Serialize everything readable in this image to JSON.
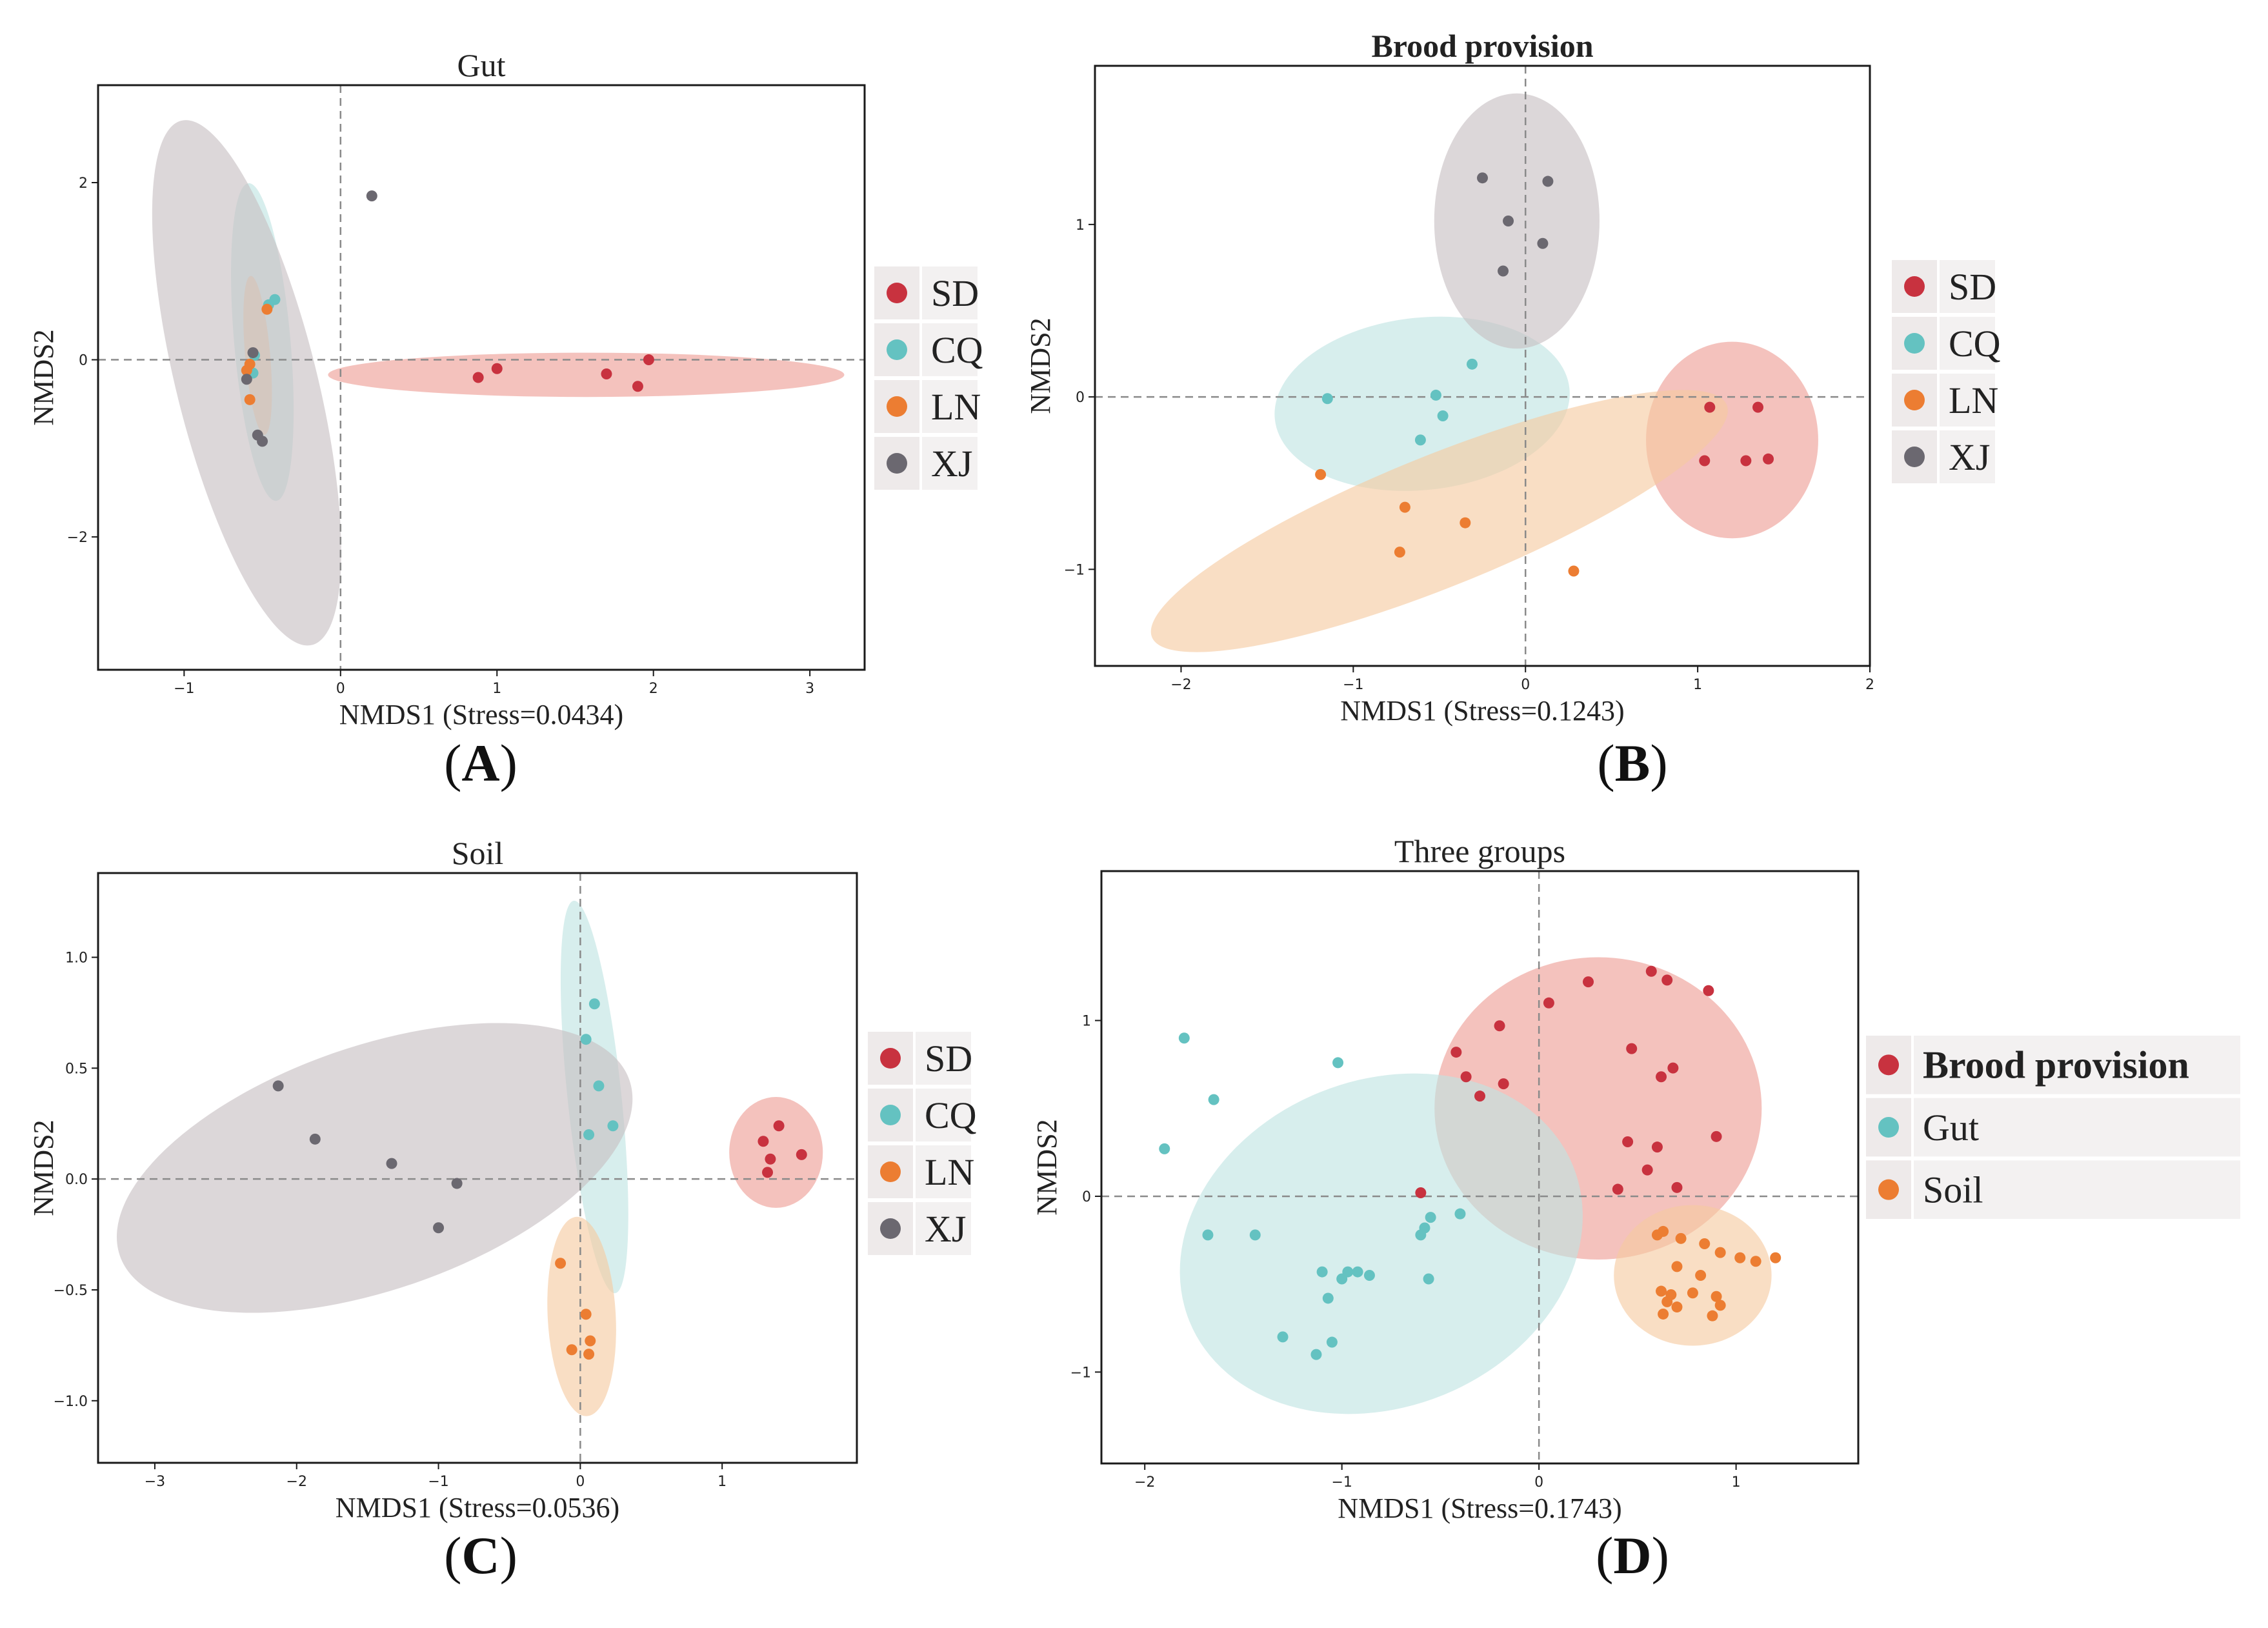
{
  "figure": {
    "panels": [
      {
        "id": "A",
        "label": "(A)"
      },
      {
        "id": "B",
        "label": "(B)"
      },
      {
        "id": "C",
        "label": "(C)"
      },
      {
        "id": "D",
        "label": "(D)"
      }
    ]
  },
  "chart_data": [
    {
      "id": "A",
      "type": "scatter",
      "title": "Gut",
      "title_bold": false,
      "xlabel": "NMDS1 (Stress=0.0434)",
      "ylabel": "NMDS2",
      "xlim": [
        -1.55,
        3.35
      ],
      "ylim": [
        -3.5,
        3.1
      ],
      "xticks": [
        {
          "v": -1,
          "label": "−1"
        },
        {
          "v": 0,
          "label": "0"
        },
        {
          "v": 1,
          "label": "1"
        },
        {
          "v": 2,
          "label": "2"
        },
        {
          "v": 3,
          "label": "3"
        }
      ],
      "yticks": [
        {
          "v": -2,
          "label": "−2"
        },
        {
          "v": 0,
          "label": "0"
        },
        {
          "v": 2,
          "label": "2"
        }
      ],
      "legend": [
        "SD",
        "CQ",
        "LN",
        "XJ"
      ],
      "series": [
        {
          "name": "SD",
          "color": "#c8323f",
          "fill": "#ee9c95",
          "points": [
            [
              0.88,
              -0.2
            ],
            [
              1.0,
              -0.1
            ],
            [
              1.7,
              -0.16
            ],
            [
              1.9,
              -0.3
            ],
            [
              1.97,
              0.0
            ]
          ],
          "ellipse": {
            "cx": 1.57,
            "cy": -0.17,
            "rx": 1.65,
            "ry": 0.25,
            "angle": 0
          }
        },
        {
          "name": "CQ",
          "color": "#64c2c1",
          "fill": "#bfe3e2",
          "points": [
            [
              -0.42,
              0.68
            ],
            [
              -0.46,
              0.62
            ],
            [
              -0.55,
              0.05
            ],
            [
              -0.56,
              -0.15
            ]
          ],
          "ellipse": {
            "cx": -0.5,
            "cy": 0.2,
            "rx": 0.18,
            "ry": 1.8,
            "angle": 5
          }
        },
        {
          "name": "LN",
          "color": "#ec7d32",
          "fill": "#f6c9a0",
          "points": [
            [
              -0.47,
              0.57
            ],
            [
              -0.58,
              -0.05
            ],
            [
              -0.6,
              -0.12
            ],
            [
              -0.58,
              -0.45
            ]
          ],
          "ellipse": {
            "cx": -0.53,
            "cy": 0.05,
            "rx": 0.08,
            "ry": 0.9,
            "angle": 5
          }
        },
        {
          "name": "XJ",
          "color": "#6b6870",
          "fill": "#c7bfc2",
          "points": [
            [
              0.2,
              1.85
            ],
            [
              -0.56,
              0.08
            ],
            [
              -0.6,
              -0.22
            ],
            [
              -0.53,
              -0.85
            ],
            [
              -0.5,
              -0.92
            ]
          ],
          "ellipse": {
            "cx": -0.6,
            "cy": -0.26,
            "rx": 0.45,
            "ry": 3.05,
            "angle": 14
          }
        }
      ]
    },
    {
      "id": "B",
      "type": "scatter",
      "title": "Brood provision",
      "title_bold": true,
      "xlabel": "NMDS1 (Stress=0.1243)",
      "ylabel": "NMDS2",
      "xlim": [
        -2.5,
        2.0
      ],
      "ylim": [
        -1.56,
        1.92
      ],
      "xticks": [
        {
          "v": -2,
          "label": "−2"
        },
        {
          "v": -1,
          "label": "−1"
        },
        {
          "v": 0,
          "label": "0"
        },
        {
          "v": 1,
          "label": "1"
        },
        {
          "v": 2,
          "label": "2"
        }
      ],
      "yticks": [
        {
          "v": -1,
          "label": "−1"
        },
        {
          "v": 0,
          "label": "0"
        },
        {
          "v": 1,
          "label": "1"
        }
      ],
      "legend": [
        "SD",
        "CQ",
        "LN",
        "XJ"
      ],
      "series": [
        {
          "name": "SD",
          "color": "#c8323f",
          "fill": "#ee9c95",
          "points": [
            [
              1.07,
              -0.06
            ],
            [
              1.35,
              -0.06
            ],
            [
              1.04,
              -0.37
            ],
            [
              1.28,
              -0.37
            ],
            [
              1.41,
              -0.36
            ]
          ],
          "ellipse": {
            "cx": 1.2,
            "cy": -0.25,
            "rx": 0.5,
            "ry": 0.57,
            "angle": 0
          }
        },
        {
          "name": "CQ",
          "color": "#64c2c1",
          "fill": "#bfe3e2",
          "points": [
            [
              -1.15,
              -0.01
            ],
            [
              -0.31,
              0.19
            ],
            [
              -0.52,
              0.01
            ],
            [
              -0.48,
              -0.11
            ],
            [
              -0.61,
              -0.25
            ]
          ],
          "ellipse": {
            "cx": -0.6,
            "cy": -0.04,
            "rx": 0.86,
            "ry": 0.5,
            "angle": 6
          }
        },
        {
          "name": "LN",
          "color": "#ec7d32",
          "fill": "#f6c9a0",
          "points": [
            [
              -1.19,
              -0.45
            ],
            [
              -0.7,
              -0.64
            ],
            [
              -0.35,
              -0.73
            ],
            [
              -0.73,
              -0.9
            ],
            [
              0.28,
              -1.01
            ]
          ],
          "ellipse": {
            "cx": -0.5,
            "cy": -0.72,
            "rx": 1.8,
            "ry": 0.38,
            "angle": 22
          }
        },
        {
          "name": "XJ",
          "color": "#6b6870",
          "fill": "#c7bfc2",
          "points": [
            [
              -0.25,
              1.27
            ],
            [
              0.13,
              1.25
            ],
            [
              -0.1,
              1.02
            ],
            [
              0.1,
              0.89
            ],
            [
              -0.13,
              0.73
            ]
          ],
          "ellipse": {
            "cx": -0.05,
            "cy": 1.02,
            "rx": 0.48,
            "ry": 0.74,
            "angle": 0
          }
        }
      ]
    },
    {
      "id": "C",
      "type": "scatter",
      "title": "Soil",
      "title_bold": false,
      "xlabel": "NMDS1 (Stress=0.0536)",
      "ylabel": "NMDS2",
      "xlim": [
        -3.4,
        1.95
      ],
      "ylim": [
        -1.28,
        1.38
      ],
      "xticks": [
        {
          "v": -3,
          "label": "−3"
        },
        {
          "v": -2,
          "label": "−2"
        },
        {
          "v": -1,
          "label": "−1"
        },
        {
          "v": 0,
          "label": "0"
        },
        {
          "v": 1,
          "label": "1"
        }
      ],
      "yticks": [
        {
          "v": -1.0,
          "label": "−1.0"
        },
        {
          "v": -0.5,
          "label": "−0.5"
        },
        {
          "v": 0.0,
          "label": "0.0"
        },
        {
          "v": 0.5,
          "label": "0.5"
        },
        {
          "v": 1.0,
          "label": "1.0"
        }
      ],
      "legend": [
        "SD",
        "CQ",
        "LN",
        "XJ"
      ],
      "series": [
        {
          "name": "SD",
          "color": "#c8323f",
          "fill": "#ee9c95",
          "points": [
            [
              1.4,
              0.24
            ],
            [
              1.29,
              0.17
            ],
            [
              1.56,
              0.11
            ],
            [
              1.34,
              0.09
            ],
            [
              1.32,
              0.03
            ]
          ],
          "ellipse": {
            "cx": 1.38,
            "cy": 0.12,
            "rx": 0.33,
            "ry": 0.25,
            "angle": 0
          }
        },
        {
          "name": "CQ",
          "color": "#64c2c1",
          "fill": "#bfe3e2",
          "points": [
            [
              0.1,
              0.79
            ],
            [
              0.04,
              0.63
            ],
            [
              0.13,
              0.42
            ],
            [
              0.23,
              0.24
            ],
            [
              0.06,
              0.2
            ]
          ],
          "ellipse": {
            "cx": 0.1,
            "cy": 0.37,
            "rx": 0.19,
            "ry": 0.89,
            "angle": 6
          }
        },
        {
          "name": "LN",
          "color": "#ec7d32",
          "fill": "#f6c9a0",
          "points": [
            [
              -0.14,
              -0.38
            ],
            [
              0.04,
              -0.61
            ],
            [
              0.07,
              -0.73
            ],
            [
              -0.06,
              -0.77
            ],
            [
              0.06,
              -0.79
            ]
          ],
          "ellipse": {
            "cx": 0.01,
            "cy": -0.62,
            "rx": 0.24,
            "ry": 0.45,
            "angle": 3
          }
        },
        {
          "name": "XJ",
          "color": "#6b6870",
          "fill": "#c7bfc2",
          "points": [
            [
              -2.13,
              0.42
            ],
            [
              -1.87,
              0.18
            ],
            [
              -1.33,
              0.07
            ],
            [
              -0.87,
              -0.02
            ],
            [
              -1.0,
              -0.22
            ]
          ],
          "ellipse": {
            "cx": -1.45,
            "cy": 0.05,
            "rx": 1.9,
            "ry": 0.55,
            "angle": 19
          }
        }
      ]
    },
    {
      "id": "D",
      "type": "scatter",
      "title": "Three groups",
      "title_bold": false,
      "xlabel": "NMDS1 (Stress=0.1743)",
      "ylabel": "NMDS2",
      "xlim": [
        -2.22,
        1.62
      ],
      "ylim": [
        -1.52,
        1.85
      ],
      "xticks": [
        {
          "v": -2,
          "label": "−2"
        },
        {
          "v": -1,
          "label": "−1"
        },
        {
          "v": 0,
          "label": "0"
        },
        {
          "v": 1,
          "label": "1"
        }
      ],
      "yticks": [
        {
          "v": -1,
          "label": "−1"
        },
        {
          "v": 0,
          "label": "0"
        },
        {
          "v": 1,
          "label": "1"
        }
      ],
      "legend": [
        "Brood provision",
        "Gut",
        "Soil"
      ],
      "legend_first_bold": true,
      "series": [
        {
          "name": "Brood provision",
          "color": "#c8323f",
          "fill": "#ee9c95",
          "points": [
            [
              0.57,
              1.28
            ],
            [
              0.25,
              1.22
            ],
            [
              0.65,
              1.23
            ],
            [
              0.86,
              1.17
            ],
            [
              0.05,
              1.1
            ],
            [
              -0.2,
              0.97
            ],
            [
              -0.42,
              0.82
            ],
            [
              -0.37,
              0.68
            ],
            [
              -0.18,
              0.64
            ],
            [
              -0.3,
              0.57
            ],
            [
              0.47,
              0.84
            ],
            [
              0.68,
              0.73
            ],
            [
              0.62,
              0.68
            ],
            [
              0.45,
              0.31
            ],
            [
              0.6,
              0.28
            ],
            [
              0.9,
              0.34
            ],
            [
              0.55,
              0.15
            ],
            [
              0.4,
              0.04
            ],
            [
              0.7,
              0.05
            ],
            [
              -0.6,
              0.02
            ]
          ],
          "ellipse": {
            "cx": 0.3,
            "cy": 0.5,
            "rx": 0.83,
            "ry": 0.86,
            "angle": 0
          }
        },
        {
          "name": "Gut",
          "color": "#64c2c1",
          "fill": "#bfe3e2",
          "points": [
            [
              -1.8,
              0.9
            ],
            [
              -1.02,
              0.76
            ],
            [
              -1.65,
              0.55
            ],
            [
              -1.9,
              0.27
            ],
            [
              -0.4,
              -0.1
            ],
            [
              -0.55,
              -0.12
            ],
            [
              -0.58,
              -0.18
            ],
            [
              -0.6,
              -0.22
            ],
            [
              -1.68,
              -0.22
            ],
            [
              -1.44,
              -0.22
            ],
            [
              -1.1,
              -0.43
            ],
            [
              -0.97,
              -0.43
            ],
            [
              -0.92,
              -0.43
            ],
            [
              -1.0,
              -0.47
            ],
            [
              -0.86,
              -0.45
            ],
            [
              -0.56,
              -0.47
            ],
            [
              -1.07,
              -0.58
            ],
            [
              -1.3,
              -0.8
            ],
            [
              -1.05,
              -0.83
            ],
            [
              -1.13,
              -0.9
            ]
          ],
          "ellipse": {
            "cx": -0.8,
            "cy": -0.27,
            "rx": 1.05,
            "ry": 0.93,
            "angle": 22
          }
        },
        {
          "name": "Soil",
          "color": "#ec7d32",
          "fill": "#f6c9a0",
          "points": [
            [
              0.63,
              -0.2
            ],
            [
              0.6,
              -0.22
            ],
            [
              0.72,
              -0.24
            ],
            [
              0.84,
              -0.27
            ],
            [
              0.92,
              -0.32
            ],
            [
              1.02,
              -0.35
            ],
            [
              1.1,
              -0.37
            ],
            [
              1.2,
              -0.35
            ],
            [
              0.7,
              -0.4
            ],
            [
              0.82,
              -0.45
            ],
            [
              0.62,
              -0.54
            ],
            [
              0.67,
              -0.56
            ],
            [
              0.78,
              -0.55
            ],
            [
              0.9,
              -0.57
            ],
            [
              0.65,
              -0.6
            ],
            [
              0.7,
              -0.63
            ],
            [
              0.92,
              -0.62
            ],
            [
              0.63,
              -0.67
            ],
            [
              0.88,
              -0.68
            ]
          ],
          "ellipse": {
            "cx": 0.78,
            "cy": -0.45,
            "rx": 0.4,
            "ry": 0.4,
            "angle": 0
          }
        }
      ]
    }
  ]
}
